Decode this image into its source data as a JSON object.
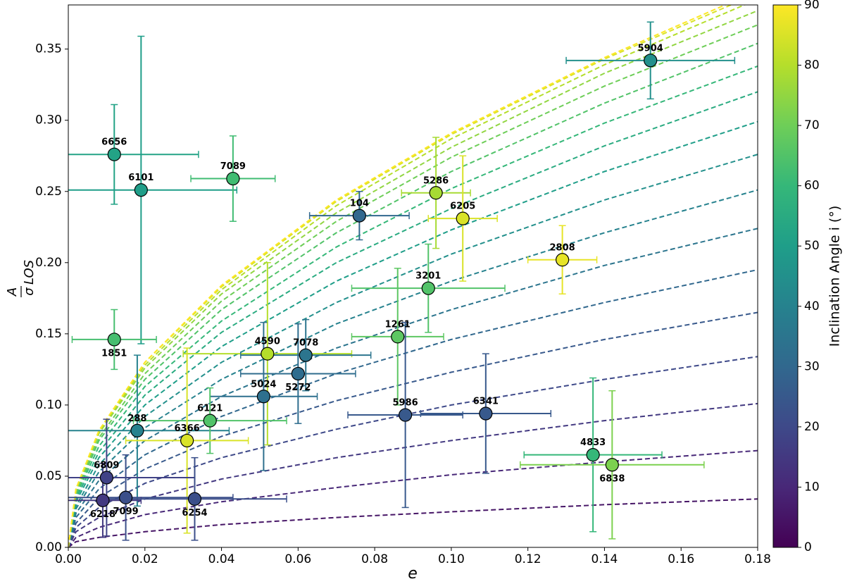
{
  "chart_data": {
    "type": "scatter",
    "x_label": "e",
    "y_label": {
      "numerator": "A",
      "denominator": "σ",
      "suffix": "LOS"
    },
    "xlim": [
      0,
      0.18
    ],
    "ylim": [
      0,
      0.381
    ],
    "xticks": [
      {
        "value": 0,
        "label": "0.00"
      },
      {
        "value": 0.02,
        "label": "0.02"
      },
      {
        "value": 0.04,
        "label": "0.04"
      },
      {
        "value": 0.06,
        "label": "0.06"
      },
      {
        "value": 0.08,
        "label": "0.08"
      },
      {
        "value": 0.1,
        "label": "0.10"
      },
      {
        "value": 0.12,
        "label": "0.12"
      },
      {
        "value": 0.14,
        "label": "0.14"
      },
      {
        "value": 0.16,
        "label": "0.16"
      },
      {
        "value": 0.18,
        "label": "0.18"
      }
    ],
    "yticks": [
      {
        "value": 0,
        "label": "0.00"
      },
      {
        "value": 0.05,
        "label": "0.05"
      },
      {
        "value": 0.1,
        "label": "0.10"
      },
      {
        "value": 0.15,
        "label": "0.15"
      },
      {
        "value": 0.2,
        "label": "0.20"
      },
      {
        "value": 0.25,
        "label": "0.25"
      },
      {
        "value": 0.3,
        "label": "0.30"
      },
      {
        "value": 0.35,
        "label": "0.35"
      }
    ],
    "point_labels": [
      "5904",
      "6656",
      "6101",
      "7089",
      "1851",
      "104",
      "5286",
      "6205",
      "2808",
      "3201",
      "1261",
      "4590",
      "7078",
      "5272",
      "5024",
      "5986",
      "6341",
      "288",
      "6121",
      "6366",
      "4833",
      "6838",
      "6809",
      "7099",
      "6218",
      "6254"
    ],
    "x": [
      0.152,
      0.012,
      0.019,
      0.043,
      0.012,
      0.076,
      0.096,
      0.103,
      0.129,
      0.094,
      0.086,
      0.052,
      0.062,
      0.06,
      0.051,
      0.088,
      0.109,
      0.018,
      0.037,
      0.031,
      0.137,
      0.142,
      0.01,
      0.015,
      0.009,
      0.033
    ],
    "values": [
      0.342,
      0.276,
      0.251,
      0.259,
      0.146,
      0.233,
      0.249,
      0.231,
      0.202,
      0.182,
      0.148,
      0.136,
      0.135,
      0.122,
      0.106,
      0.093,
      0.094,
      0.082,
      0.089,
      0.075,
      0.065,
      0.058,
      0.049,
      0.035,
      0.033,
      0.034
    ],
    "xerr": [
      0.022,
      0.022,
      0.025,
      0.011,
      0.011,
      0.013,
      0.009,
      0.009,
      0.009,
      0.02,
      0.012,
      0.022,
      0.017,
      0.015,
      0.014,
      0.015,
      0.017,
      0.024,
      0.02,
      0.016,
      0.018,
      0.024,
      0.023,
      0.028,
      0.01,
      0.024
    ],
    "yerr": [
      0.027,
      0.035,
      0.108,
      0.03,
      0.021,
      0.017,
      0.039,
      0.044,
      0.024,
      0.031,
      0.048,
      0.064,
      0.025,
      0.035,
      0.052,
      0.065,
      0.042,
      0.053,
      0.023,
      0.065,
      0.054,
      0.052,
      0.041,
      0.03,
      0.026,
      0.029
    ],
    "inclination": [
      45,
      52,
      50,
      62,
      63,
      30,
      78,
      85,
      87,
      65,
      67,
      80,
      35,
      32,
      33,
      25,
      25,
      40,
      65,
      85,
      60,
      72,
      18,
      22,
      15,
      22
    ],
    "curves": {
      "x": [
        0,
        0.002,
        0.008,
        0.02,
        0.04,
        0.07,
        0.1,
        0.14,
        0.18
      ],
      "series": [
        {
          "inclination": 5,
          "values": [
            0,
            0.004,
            0.007,
            0.011,
            0.016,
            0.021,
            0.025,
            0.03,
            0.034
          ]
        },
        {
          "inclination": 10,
          "values": [
            0,
            0.007,
            0.014,
            0.023,
            0.032,
            0.042,
            0.051,
            0.06,
            0.068
          ]
        },
        {
          "inclination": 15,
          "values": [
            0,
            0.011,
            0.021,
            0.034,
            0.048,
            0.063,
            0.075,
            0.089,
            0.101
          ]
        },
        {
          "inclination": 20,
          "values": [
            0,
            0.014,
            0.028,
            0.045,
            0.063,
            0.083,
            0.1,
            0.118,
            0.134
          ]
        },
        {
          "inclination": 25,
          "values": [
            0,
            0.017,
            0.035,
            0.055,
            0.078,
            0.103,
            0.123,
            0.146,
            0.165
          ]
        },
        {
          "inclination": 30,
          "values": [
            0,
            0.021,
            0.041,
            0.065,
            0.092,
            0.122,
            0.146,
            0.172,
            0.195
          ]
        },
        {
          "inclination": 35,
          "values": [
            0,
            0.024,
            0.047,
            0.075,
            0.106,
            0.14,
            0.167,
            0.198,
            0.224
          ]
        },
        {
          "inclination": 40,
          "values": [
            0,
            0.027,
            0.053,
            0.084,
            0.118,
            0.157,
            0.187,
            0.221,
            0.251
          ]
        },
        {
          "inclination": 45,
          "values": [
            0,
            0.029,
            0.058,
            0.092,
            0.13,
            0.172,
            0.206,
            0.244,
            0.276
          ]
        },
        {
          "inclination": 50,
          "values": [
            0,
            0.032,
            0.063,
            0.1,
            0.141,
            0.187,
            0.223,
            0.264,
            0.299
          ]
        },
        {
          "inclination": 55,
          "values": [
            0,
            0.034,
            0.067,
            0.107,
            0.151,
            0.2,
            0.238,
            0.282,
            0.32
          ]
        },
        {
          "inclination": 60,
          "values": [
            0,
            0.036,
            0.071,
            0.113,
            0.159,
            0.211,
            0.252,
            0.298,
            0.338
          ]
        },
        {
          "inclination": 65,
          "values": [
            0,
            0.037,
            0.075,
            0.118,
            0.167,
            0.221,
            0.264,
            0.312,
            0.354
          ]
        },
        {
          "inclination": 70,
          "values": [
            0,
            0.039,
            0.077,
            0.122,
            0.173,
            0.229,
            0.274,
            0.324,
            0.367
          ]
        },
        {
          "inclination": 75,
          "values": [
            0,
            0.04,
            0.08,
            0.126,
            0.178,
            0.235,
            0.281,
            0.333,
            0.377
          ]
        },
        {
          "inclination": 80,
          "values": [
            0,
            0.041,
            0.081,
            0.128,
            0.181,
            0.24,
            0.287,
            0.339,
            0.385
          ]
        },
        {
          "inclination": 85,
          "values": [
            0,
            0.041,
            0.082,
            0.13,
            0.183,
            0.243,
            0.29,
            0.343,
            0.389
          ]
        },
        {
          "inclination": 90,
          "values": [
            0,
            0.041,
            0.082,
            0.13,
            0.184,
            0.244,
            0.291,
            0.344,
            0.391
          ]
        }
      ]
    },
    "colorbar": {
      "label": "Inclination Angle i (°)",
      "lim": [
        0,
        90
      ],
      "ticks": [
        0,
        10,
        20,
        30,
        40,
        50,
        60,
        70,
        80,
        90
      ],
      "colors": [
        "#440154",
        "#482878",
        "#3e4989",
        "#31688e",
        "#26828e",
        "#1f9e89",
        "#35b779",
        "#6ece58",
        "#b5de2b",
        "#fde725"
      ]
    }
  }
}
